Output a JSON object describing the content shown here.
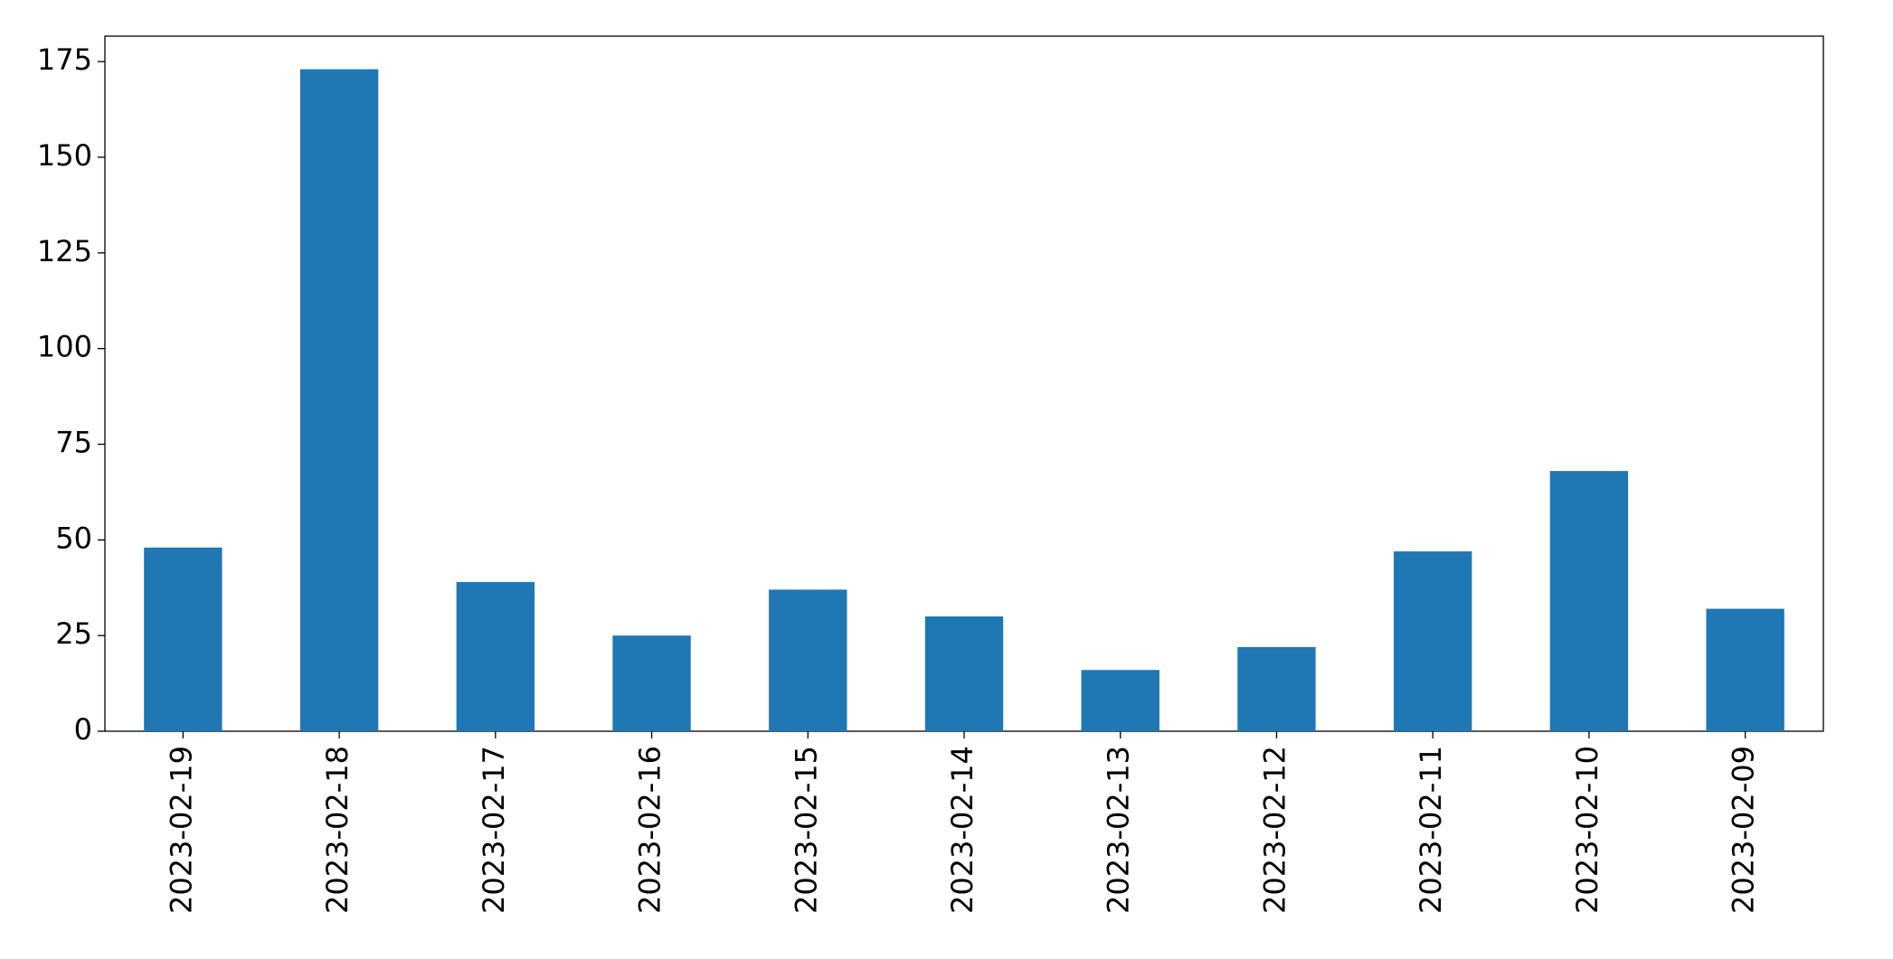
{
  "chart_data": {
    "type": "bar",
    "categories": [
      "2023-02-19",
      "2023-02-18",
      "2023-02-17",
      "2023-02-16",
      "2023-02-15",
      "2023-02-14",
      "2023-02-13",
      "2023-02-12",
      "2023-02-11",
      "2023-02-10",
      "2023-02-09"
    ],
    "values": [
      48,
      173,
      39,
      25,
      37,
      30,
      16,
      22,
      47,
      68,
      32
    ],
    "color": "#1f77b4",
    "ylim": [
      0,
      181.65
    ],
    "yticks": [
      0,
      25,
      50,
      75,
      100,
      125,
      150,
      175
    ],
    "grid": false
  }
}
